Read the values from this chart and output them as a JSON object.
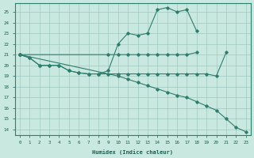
{
  "xlabel": "Humidex (Indice chaleur)",
  "color": "#2E7D6E",
  "bg_color": "#C8E8E0",
  "grid_color": "#A0C8C0",
  "ylim": [
    13.5,
    25.8
  ],
  "xlim": [
    -0.5,
    23.5
  ],
  "yticks": [
    14,
    15,
    16,
    17,
    18,
    19,
    20,
    21,
    22,
    23,
    24,
    25
  ],
  "xticks": [
    0,
    1,
    2,
    3,
    4,
    5,
    6,
    7,
    8,
    9,
    10,
    11,
    12,
    13,
    14,
    15,
    16,
    17,
    18,
    19,
    20,
    21,
    22,
    23
  ],
  "line_peak_x": [
    0,
    1,
    2,
    3,
    4,
    5,
    6,
    7,
    8,
    9,
    10,
    11,
    12,
    13,
    14,
    15,
    16,
    17,
    18
  ],
  "line_peak_y": [
    21,
    20.7,
    20,
    20,
    20,
    19.5,
    19.3,
    19.2,
    19.2,
    19.5,
    22,
    23,
    22.8,
    23,
    25.2,
    25.4,
    25.0,
    25.2,
    23.2
  ],
  "line_flat_x": [
    0,
    9,
    10,
    11,
    12,
    13,
    14,
    15,
    16,
    17,
    18
  ],
  "line_flat_y": [
    21,
    21,
    21,
    21,
    21,
    21,
    21,
    21,
    21,
    21,
    21.2
  ],
  "line_mid_x": [
    0,
    1,
    2,
    3,
    4,
    5,
    6,
    7,
    8,
    9,
    10,
    11,
    12,
    13,
    14,
    15,
    16,
    17,
    18,
    19,
    20,
    21
  ],
  "line_mid_y": [
    21,
    20.7,
    20,
    20,
    20,
    19.5,
    19.3,
    19.2,
    19.2,
    19.2,
    19.2,
    19.2,
    19.2,
    19.2,
    19.2,
    19.2,
    19.2,
    19.2,
    19.2,
    19.2,
    19.0,
    21.2
  ],
  "line_desc_x": [
    0,
    10,
    11,
    12,
    13,
    14,
    15,
    16,
    17,
    18,
    19,
    20,
    21,
    22,
    23
  ],
  "line_desc_y": [
    21,
    19.0,
    18.7,
    18.4,
    18.1,
    17.8,
    17.5,
    17.2,
    17.0,
    16.6,
    16.2,
    15.8,
    15.0,
    14.2,
    13.8
  ]
}
